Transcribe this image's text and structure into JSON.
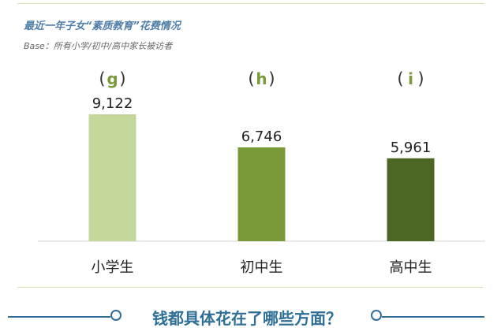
{
  "header": {
    "title": "最近一年子女“素质教育”花费情况",
    "subtitle": "Base：所有小学/初中/高中家长被访者"
  },
  "chart_data": {
    "type": "bar",
    "categories": [
      "小学生",
      "初中生",
      "高中生"
    ],
    "markers": [
      "g",
      "h",
      "i"
    ],
    "values": [
      9122,
      6746,
      5961
    ],
    "value_labels": [
      "9,122",
      "6,746",
      "5,961"
    ],
    "colors": [
      "#c5d89c",
      "#7a9a3a",
      "#4b6723"
    ],
    "marker_color": "#7a9a3a",
    "ylim": [
      0,
      10200
    ],
    "grid": false,
    "legend": "none"
  },
  "footer": {
    "text": "钱都具体花在了哪些方面？"
  }
}
